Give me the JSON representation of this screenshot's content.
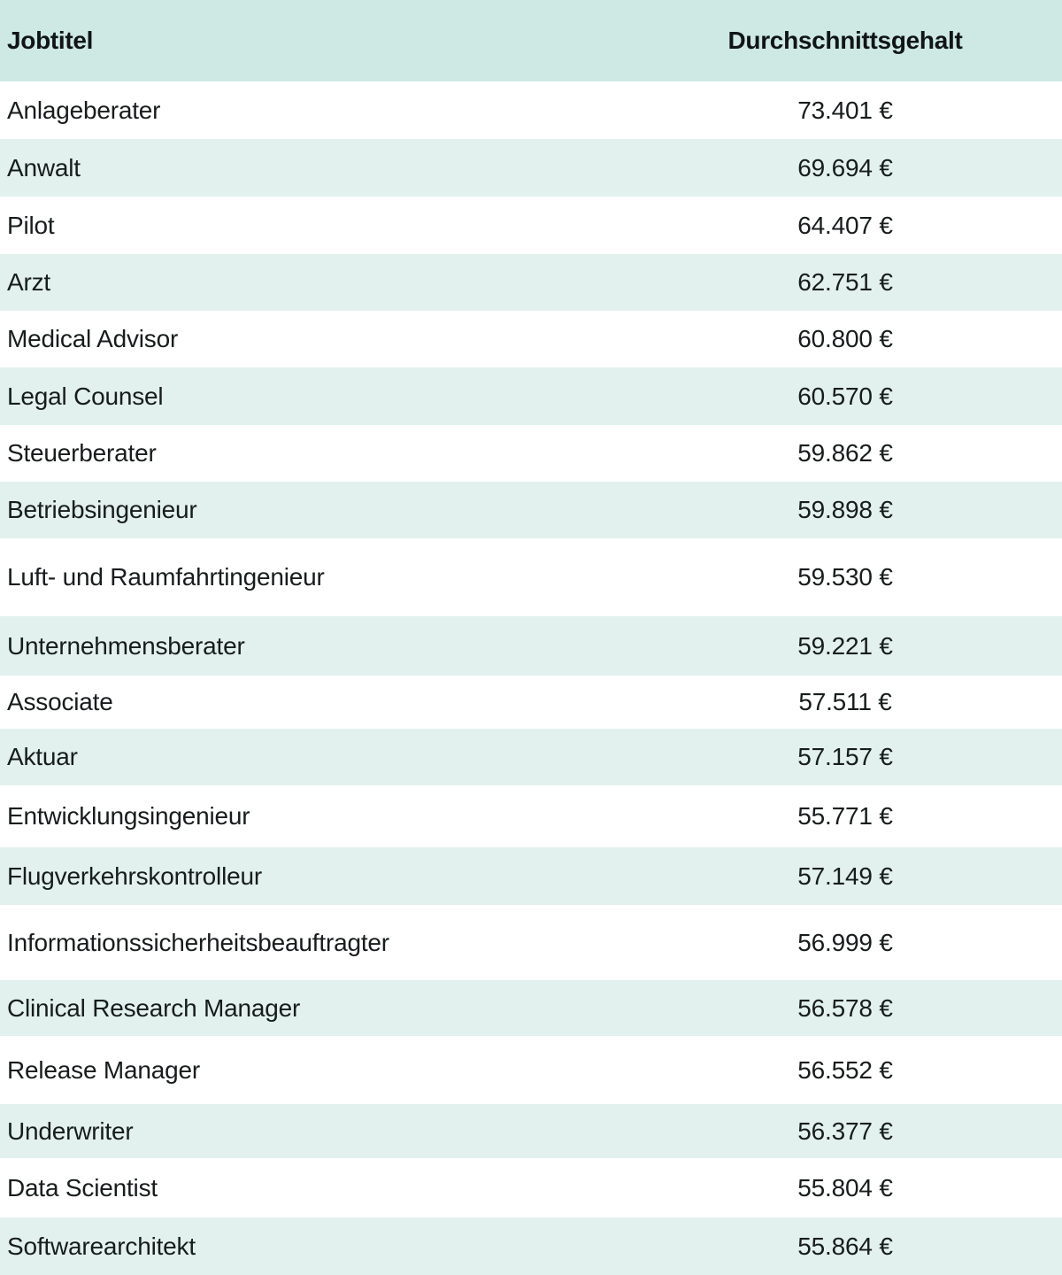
{
  "table": {
    "header": {
      "job": "Jobtitel",
      "salary": "Durchschnittsgehalt"
    },
    "rows": [
      {
        "job": "Anlageberater",
        "salary": "73.401 €"
      },
      {
        "job": "Anwalt",
        "salary": "69.694 €"
      },
      {
        "job": "Pilot",
        "salary": "64.407 €"
      },
      {
        "job": "Arzt",
        "salary": "62.751 €"
      },
      {
        "job": "Medical Advisor",
        "salary": "60.800 €"
      },
      {
        "job": "Legal Counsel",
        "salary": "60.570 €"
      },
      {
        "job": "Steuerberater",
        "salary": "59.862 €"
      },
      {
        "job": "Betriebsingenieur",
        "salary": "59.898 €"
      },
      {
        "job": "Luft- und Raumfahrtingenieur",
        "salary": "59.530 €"
      },
      {
        "job": "Unternehmensberater",
        "salary": "59.221 €"
      },
      {
        "job": "Associate",
        "salary": "57.511 €"
      },
      {
        "job": "Aktuar",
        "salary": "57.157 €"
      },
      {
        "job": "Entwicklungsingenieur",
        "salary": "55.771 €"
      },
      {
        "job": "Flugverkehrskontrolleur",
        "salary": "57.149 €"
      },
      {
        "job": "Informationssicherheitsbeauftragter",
        "salary": "56.999 €"
      },
      {
        "job": "Clinical Research Manager",
        "salary": "56.578 €"
      },
      {
        "job": "Release Manager",
        "salary": "56.552 €"
      },
      {
        "job": "Underwriter",
        "salary": "56.377 €"
      },
      {
        "job": "Data Scientist",
        "salary": "55.804 €"
      },
      {
        "job": "Softwarearchitekt",
        "salary": "55.864 €"
      }
    ]
  },
  "colors": {
    "header_bg": "#cee9e4",
    "stripe_bg": "#e2f1ee",
    "row_bg": "#ffffff",
    "text": "#171c1c"
  },
  "chart_data": {
    "type": "table",
    "columns": [
      "Jobtitel",
      "Durchschnittsgehalt"
    ],
    "categories": [
      "Anlageberater",
      "Anwalt",
      "Pilot",
      "Arzt",
      "Medical Advisor",
      "Legal Counsel",
      "Steuerberater",
      "Betriebsingenieur",
      "Luft- und Raumfahrtingenieur",
      "Unternehmensberater",
      "Associate",
      "Aktuar",
      "Entwicklungsingenieur",
      "Flugverkehrskontrolleur",
      "Informationssicherheitsbeauftragter",
      "Clinical Research Manager",
      "Release Manager",
      "Underwriter",
      "Data Scientist",
      "Softwarearchitekt"
    ],
    "values": [
      73401,
      69694,
      64407,
      62751,
      60800,
      60570,
      59862,
      59898,
      59530,
      59221,
      57511,
      57157,
      55771,
      57149,
      56999,
      56578,
      56552,
      56377,
      55804,
      55864
    ],
    "value_unit": "€",
    "title": "",
    "xlabel": "Jobtitel",
    "ylabel": "Durchschnittsgehalt"
  }
}
